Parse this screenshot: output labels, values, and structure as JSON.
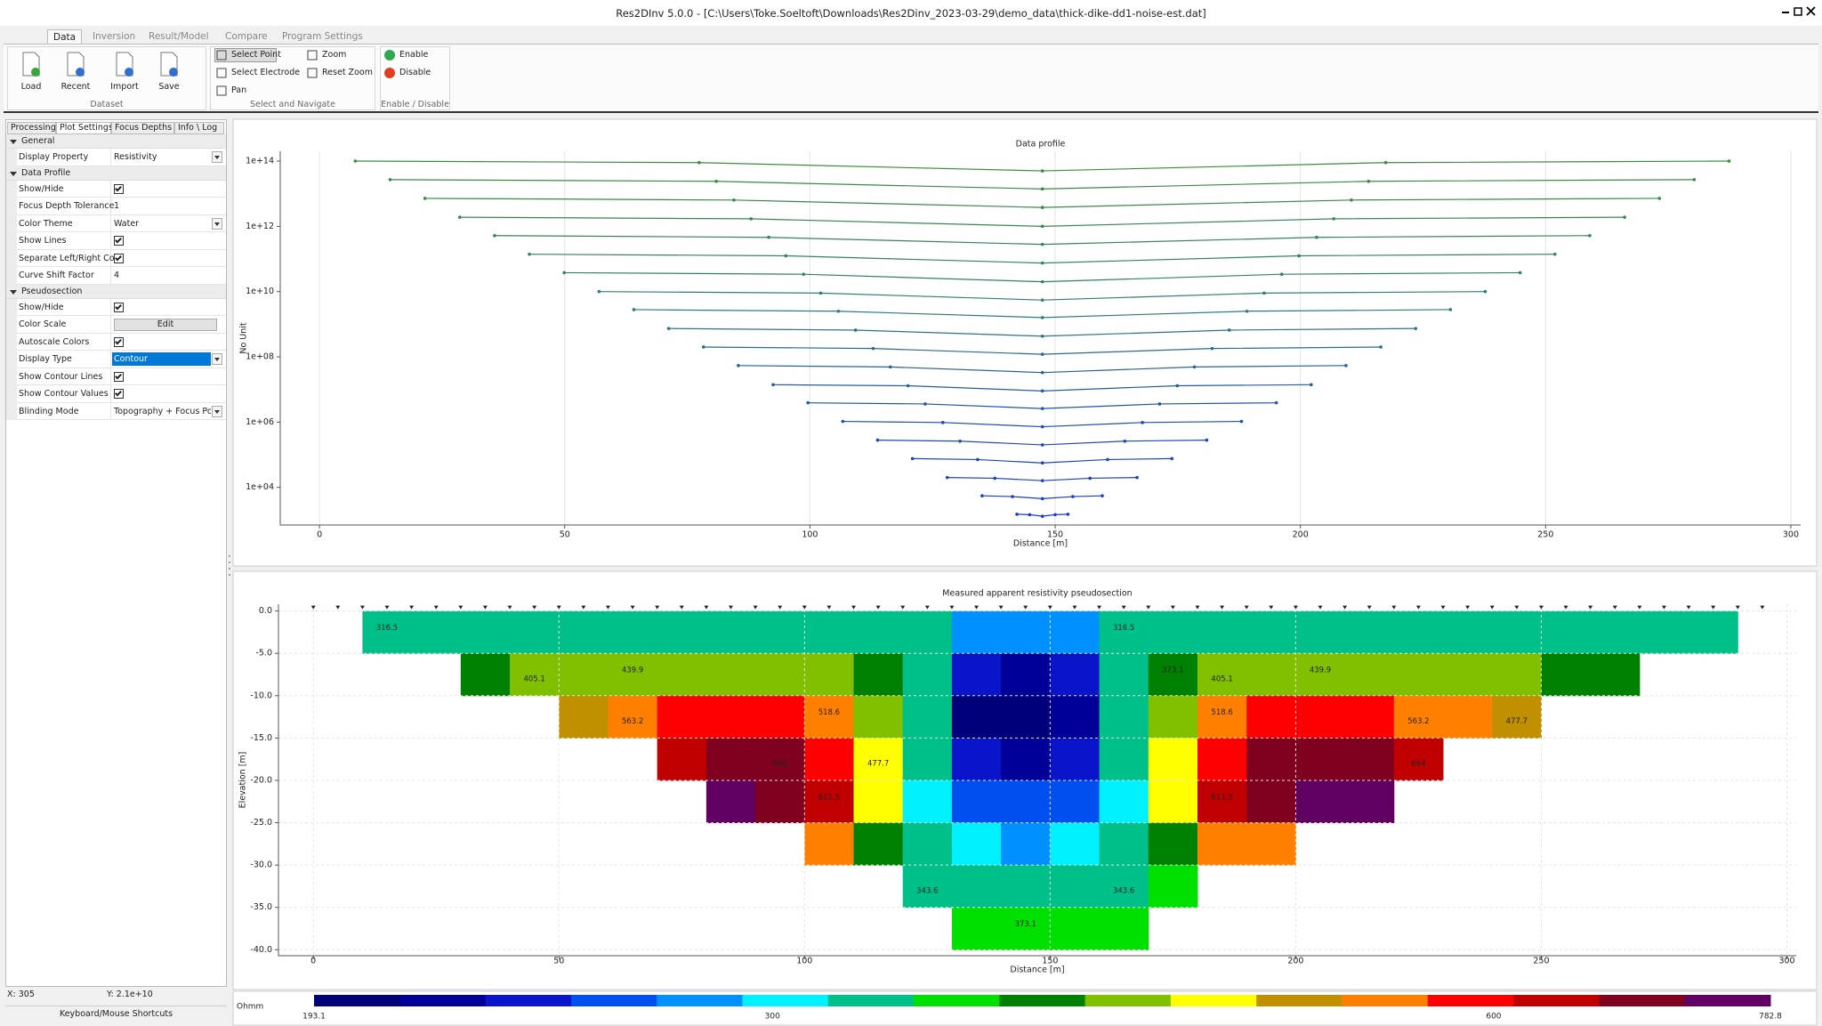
{
  "window": {
    "title": "Res2DInv 5.0.0 -  [C:\\Users\\Toke.Soeltoft\\Downloads\\Res2Dinv_2023-03-29\\demo_data\\thick-dike-dd1-noise-est.dat]"
  },
  "ribbon": {
    "tabs": [
      "Data",
      "Inversion",
      "Result/Model",
      "Compare",
      "Program Settings"
    ],
    "active_tab": 0,
    "groups": [
      {
        "label": "Dataset",
        "buttons": [
          "Load",
          "Recent",
          "Import",
          "Save"
        ]
      },
      {
        "label": "Select and Navigate",
        "buttons": [
          "Select Point",
          "Select Electrode",
          "Pan",
          "Zoom",
          "Reset Zoom"
        ],
        "active": 0
      },
      {
        "label": "Enable / Disable",
        "buttons": [
          "Enable",
          "Disable"
        ]
      }
    ]
  },
  "left_panel": {
    "tabs": [
      "Processing",
      "Plot Settings",
      "Focus Depths",
      "Info \\ Log"
    ],
    "active_tab": 1,
    "sections": [
      {
        "title": "General",
        "rows": [
          {
            "name": "Display Property",
            "value": "Resistivity",
            "dropdown": true
          }
        ]
      },
      {
        "title": "Data Profile",
        "rows": [
          {
            "name": "Show/Hide",
            "checked": true
          },
          {
            "name": "Focus Depth Tolerance",
            "value": 1
          },
          {
            "name": "Color Theme",
            "value": "Water",
            "dropdown": true
          },
          {
            "name": "Show Lines",
            "checked": true
          },
          {
            "name": "Separate Left/Right Conf",
            "checked": true
          },
          {
            "name": "Curve Shift Factor",
            "value": 4
          }
        ]
      },
      {
        "title": "Pseudosection",
        "rows": [
          {
            "name": "Show/Hide",
            "checked": true
          },
          {
            "name": "Color Scale",
            "button": "Edit"
          },
          {
            "name": "Autoscale Colors",
            "checked": true
          },
          {
            "name": "Display Type",
            "value": "Contour",
            "dropdown": true,
            "selected": true
          },
          {
            "name": "Show Contour Lines",
            "checked": true
          },
          {
            "name": "Show Contour Values",
            "checked": true
          },
          {
            "name": "Blinding Mode",
            "value": "Topography + Focus Points",
            "dropdown": true
          }
        ]
      }
    ]
  },
  "status": {
    "x": "X: 305",
    "y": "Y: 2.1e+10",
    "shortcuts": "Keyboard/Mouse Shortcuts"
  },
  "chart_data": [
    {
      "type": "line",
      "title": "Data profile",
      "xlabel": "Distance [m]",
      "ylabel": "No Unit",
      "xlim": [
        -8,
        302
      ],
      "ylim": [
        700,
        200000000000000.0
      ],
      "log_y": true,
      "xticks": [
        0,
        50,
        100,
        150,
        200,
        250,
        300
      ],
      "yticks": [
        {
          "value": 10000.0,
          "label": "1e+04"
        },
        {
          "value": 1000000.0,
          "label": "1e+06"
        },
        {
          "value": 100000000.0,
          "label": "1e+08"
        },
        {
          "value": 10000000000.0,
          "label": "1e+10"
        },
        {
          "value": 1000000000000.0,
          "label": "1e+12"
        },
        {
          "value": 100000000000000.0,
          "label": "1e+14"
        }
      ],
      "grid": "x",
      "markers": true,
      "series": [
        {
          "color": "#3c8c3c",
          "x": [
            7.3,
            77.4,
            147.4,
            217.4,
            287.4
          ],
          "values": [
            100000000000000.0,
            90000000000000.0,
            50000000000000.0,
            90000000000000.0,
            100000000000000.0
          ]
        },
        {
          "color": "#3a8a44",
          "x": [
            14.4,
            80.9,
            147.4,
            213.9,
            280.3
          ],
          "values": [
            27000000000000.0,
            24000000000000.0,
            14000000000000.0,
            24000000000000.0,
            27000000000000.0
          ]
        },
        {
          "color": "#38884c",
          "x": [
            21.5,
            84.5,
            147.4,
            210.4,
            273.2
          ],
          "values": [
            7200000000000.0,
            6400000000000.0,
            3800000000000.0,
            6400000000000.0,
            7200000000000.0
          ]
        },
        {
          "color": "#368654",
          "x": [
            28.6,
            88.0,
            147.4,
            206.8,
            266.1
          ],
          "values": [
            1900000000000.0,
            1700000000000.0,
            1000000000000.0,
            1700000000000.0,
            1900000000000.0
          ]
        },
        {
          "color": "#34845c",
          "x": [
            35.7,
            91.6,
            147.4,
            203.3,
            259.0
          ],
          "values": [
            520000000000.0,
            460000000000.0,
            280000000000.0,
            460000000000.0,
            520000000000.0
          ]
        },
        {
          "color": "#328264",
          "x": [
            42.8,
            95.1,
            147.4,
            199.7,
            251.9
          ],
          "values": [
            140000000000.0,
            125000000000.0,
            75000000000.0,
            125000000000.0,
            140000000000.0
          ]
        },
        {
          "color": "#30806c",
          "x": [
            49.9,
            98.7,
            147.4,
            196.2,
            244.8
          ],
          "values": [
            38000000000.0,
            34000000000.0,
            20000000000.0,
            34000000000.0,
            38000000000.0
          ]
        },
        {
          "color": "#2e7e74",
          "x": [
            57.0,
            102.2,
            147.4,
            192.6,
            237.7
          ],
          "values": [
            10000000000.0,
            9000000000.0,
            5500000000.0,
            9000000000.0,
            10000000000.0
          ]
        },
        {
          "color": "#2c7c7c",
          "x": [
            64.1,
            105.8,
            147.4,
            189.1,
            230.6
          ],
          "values": [
            2800000000.0,
            2500000000.0,
            1600000000.0,
            2500000000.0,
            2800000000.0
          ]
        },
        {
          "color": "#2a7484",
          "x": [
            71.2,
            109.3,
            147.4,
            185.5,
            223.5
          ],
          "values": [
            740000000.0,
            660000000.0,
            430000000.0,
            660000000.0,
            740000000.0
          ]
        },
        {
          "color": "#286c8c",
          "x": [
            78.3,
            112.9,
            147.4,
            182.0,
            216.4
          ],
          "values": [
            200000000.0,
            180000000.0,
            120000000.0,
            180000000.0,
            200000000.0
          ]
        },
        {
          "color": "#266494",
          "x": [
            85.4,
            116.4,
            147.4,
            178.4,
            209.3
          ],
          "values": [
            54000000.0,
            49000000.0,
            33000000.0,
            49000000.0,
            54000000.0
          ]
        },
        {
          "color": "#245c9c",
          "x": [
            92.5,
            120.0,
            147.4,
            174.9,
            202.2
          ],
          "values": [
            14000000.0,
            13000000.0,
            9000000.0,
            13000000.0,
            14000000.0
          ]
        },
        {
          "color": "#2254a4",
          "x": [
            99.6,
            123.5,
            147.4,
            171.3,
            195.1
          ],
          "values": [
            3900000.0,
            3600000.0,
            2600000.0,
            3600000.0,
            3900000.0
          ]
        },
        {
          "color": "#204cac",
          "x": [
            106.7,
            127.1,
            147.4,
            167.8,
            188.0
          ],
          "values": [
            1050000.0,
            970000.0,
            720000.0,
            970000.0,
            1050000.0
          ]
        },
        {
          "color": "#1e48b4",
          "x": [
            113.8,
            130.6,
            147.4,
            164.2,
            180.9
          ],
          "values": [
            280000.0,
            260000.0,
            200000.0,
            260000.0,
            280000.0
          ]
        },
        {
          "color": "#1c44bc",
          "x": [
            120.9,
            134.2,
            147.4,
            160.7,
            173.8
          ],
          "values": [
            76000.0,
            71000.0,
            56000.0,
            71000.0,
            76000.0
          ]
        },
        {
          "color": "#1a40c4",
          "x": [
            128.0,
            137.7,
            147.4,
            157.1,
            166.7
          ],
          "values": [
            20000.0,
            19000.0,
            16000.0,
            19000.0,
            20000.0
          ]
        },
        {
          "color": "#183ccc",
          "x": [
            135.1,
            141.3,
            147.4,
            153.6,
            159.6
          ],
          "values": [
            5500.0,
            5200.0,
            4500.0,
            5200.0,
            5500.0
          ]
        },
        {
          "color": "#1638d4",
          "x": [
            142.2,
            144.8,
            147.4,
            150.0,
            152.6
          ],
          "values": [
            1500.0,
            1450.0,
            1300.0,
            1450.0,
            1500.0
          ]
        }
      ]
    },
    {
      "type": "contour",
      "title": "Measured apparent resistivity pseudosection",
      "xlabel": "Distance [m]",
      "ylabel": "Elevation [m]",
      "xlim": [
        -7.1,
        301.9
      ],
      "ylim": [
        -40.7,
        0.8
      ],
      "xticks": [
        0,
        50,
        100,
        150,
        200,
        250,
        300
      ],
      "yticks": [
        {
          "value": 0,
          "label": "0.0"
        },
        {
          "value": -5,
          "label": "-5.0"
        },
        {
          "value": -10,
          "label": "-10.0"
        },
        {
          "value": -15,
          "label": "-15.0"
        },
        {
          "value": -20,
          "label": "-20.0"
        },
        {
          "value": -25,
          "label": "-25.0"
        },
        {
          "value": -30,
          "label": "-30.0"
        },
        {
          "value": -35,
          "label": "-35.0"
        },
        {
          "value": -40,
          "label": "-40.0"
        }
      ],
      "grid": true,
      "electrodes": [
        0,
        5,
        10,
        15,
        20,
        25,
        30,
        35,
        40,
        45,
        50,
        55,
        60,
        65,
        70,
        75,
        80,
        85,
        90,
        95,
        100,
        105,
        110,
        115,
        120,
        125,
        130,
        135,
        140,
        145,
        150,
        155,
        160,
        165,
        170,
        175,
        180,
        185,
        190,
        195,
        200,
        205,
        210,
        215,
        220,
        225,
        230,
        235,
        240,
        245,
        250,
        255,
        260,
        265,
        270,
        275,
        280,
        285,
        290,
        295
      ],
      "x": [
        15,
        25,
        35,
        45,
        55,
        65,
        75,
        85,
        95,
        105,
        115,
        125,
        135,
        145,
        155,
        165,
        175,
        185,
        195,
        205,
        215,
        225,
        235,
        245,
        255,
        265,
        275,
        285
      ],
      "y": [
        -2.5,
        -7.5,
        -12.5,
        -17.5,
        -22.5,
        -27.5,
        -32.5,
        -37.5
      ],
      "z": [
        [
          320,
          320,
          320,
          320,
          320,
          320,
          320,
          320,
          320,
          320,
          320,
          320,
          290,
          270,
          290,
          320,
          320,
          320,
          320,
          320,
          320,
          320,
          320,
          320,
          320,
          320,
          320,
          320
        ],
        [
          null,
          null,
          400,
          410,
          420,
          430,
          430,
          430,
          420,
          410,
          380,
          330,
          230,
          210,
          230,
          330,
          380,
          410,
          420,
          430,
          430,
          430,
          420,
          410,
          400,
          390,
          null,
          null
        ],
        [
          null,
          null,
          null,
          null,
          500,
          560,
          580,
          590,
          580,
          520,
          430,
          330,
          200,
          195,
          210,
          330,
          430,
          520,
          580,
          590,
          580,
          560,
          520,
          480,
          null,
          null,
          null,
          null
        ],
        [
          null,
          null,
          null,
          null,
          null,
          null,
          650,
          690,
          670,
          600,
          470,
          330,
          230,
          210,
          230,
          330,
          470,
          600,
          670,
          700,
          690,
          660,
          null,
          null,
          null,
          null,
          null,
          null
        ],
        [
          null,
          null,
          null,
          null,
          null,
          null,
          null,
          740,
          720,
          620,
          460,
          310,
          260,
          250,
          260,
          310,
          460,
          620,
          720,
          760,
          740,
          null,
          null,
          null,
          null,
          null,
          null,
          null
        ],
        [
          null,
          null,
          null,
          null,
          null,
          null,
          null,
          null,
          null,
          520,
          400,
          320,
          300,
          290,
          300,
          320,
          400,
          520,
          560,
          null,
          null,
          null,
          null,
          null,
          null,
          null,
          null,
          null
        ],
        [
          null,
          null,
          null,
          null,
          null,
          null,
          null,
          null,
          null,
          null,
          null,
          340,
          330,
          320,
          330,
          340,
          360,
          null,
          null,
          null,
          null,
          null,
          null,
          null,
          null,
          null,
          null,
          null
        ],
        [
          null,
          null,
          null,
          null,
          null,
          null,
          null,
          null,
          null,
          null,
          null,
          null,
          350,
          370,
          360,
          350,
          null,
          null,
          null,
          null,
          null,
          null,
          null,
          null,
          null,
          null,
          null,
          null
        ]
      ],
      "contour_levels": [
        316.5,
        343.6,
        373.1,
        405.1,
        439.9,
        477.7,
        518.6,
        563.2,
        611.5,
        664
      ],
      "colorbar": {
        "label": "Ohmm",
        "clim": [
          193.1,
          782.8
        ],
        "ticks": [
          193.1,
          300,
          600,
          782.8
        ],
        "log": true,
        "colors": [
          "#00007a",
          "#000099",
          "#0a14c8",
          "#0050f0",
          "#0090ff",
          "#00f0ff",
          "#00c08a",
          "#00e000",
          "#008000",
          "#80c000",
          "#ffff00",
          "#c09000",
          "#ff8000",
          "#ff0000",
          "#c00000",
          "#800020",
          "#600060"
        ]
      }
    }
  ]
}
